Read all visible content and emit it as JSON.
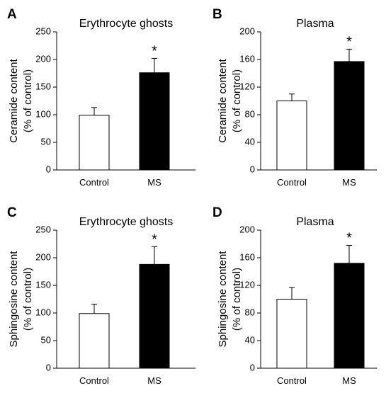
{
  "colors": {
    "control_fill": "#ffffff",
    "ms_fill": "#000000",
    "stroke": "#000000"
  },
  "chart_data": [
    {
      "type": "bar",
      "panel": "A",
      "title": "Erythrocyte ghosts",
      "ylabel_line1": "Ceramide content",
      "ylabel_line2": "(% of control)",
      "categories": [
        "Control",
        "MS"
      ],
      "values": [
        99,
        176
      ],
      "errors": [
        14,
        26
      ],
      "significance": [
        "",
        "*"
      ],
      "ylim": [
        0,
        250
      ],
      "yticks": [
        0,
        50,
        100,
        150,
        200,
        250
      ]
    },
    {
      "type": "bar",
      "panel": "B",
      "title": "Plasma",
      "ylabel_line1": "Ceramide content",
      "ylabel_line2": "(% of control)",
      "categories": [
        "Control",
        "MS"
      ],
      "values": [
        100,
        157
      ],
      "errors": [
        10,
        18
      ],
      "significance": [
        "",
        "*"
      ],
      "ylim": [
        0,
        200
      ],
      "yticks": [
        0,
        40,
        80,
        120,
        160,
        200
      ]
    },
    {
      "type": "bar",
      "panel": "C",
      "title": "Erythrocyte ghosts",
      "ylabel_line1": "Sphingosine content",
      "ylabel_line2": "(% of control)",
      "categories": [
        "Control",
        "MS"
      ],
      "values": [
        99,
        188
      ],
      "errors": [
        17,
        32
      ],
      "significance": [
        "",
        "*"
      ],
      "ylim": [
        0,
        250
      ],
      "yticks": [
        0,
        50,
        100,
        150,
        200,
        250
      ]
    },
    {
      "type": "bar",
      "panel": "D",
      "title": "Plasma",
      "ylabel_line1": "Sphingosine content",
      "ylabel_line2": "(% of control)",
      "categories": [
        "Control",
        "MS"
      ],
      "values": [
        100,
        152
      ],
      "errors": [
        17,
        26
      ],
      "significance": [
        "",
        "*"
      ],
      "ylim": [
        0,
        200
      ],
      "yticks": [
        0,
        40,
        80,
        120,
        160,
        200
      ]
    }
  ]
}
